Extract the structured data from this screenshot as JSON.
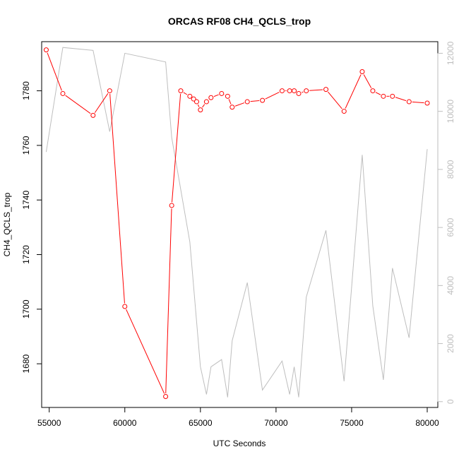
{
  "chart_data": {
    "type": "line",
    "title": "ORCAS RF08 CH4_QCLS_trop",
    "xlabel": "UTC Seconds",
    "ylabel": "CH4_QCLS_trop",
    "xlim": [
      54500,
      80700
    ],
    "ylim_left": [
      1664,
      1798
    ],
    "ylim_right": [
      -200,
      12400
    ],
    "x_ticks": [
      55000,
      60000,
      65000,
      70000,
      75000,
      80000
    ],
    "y_ticks_left": [
      1680,
      1700,
      1720,
      1740,
      1760,
      1780
    ],
    "y_ticks_right": [
      0,
      2000,
      4000,
      6000,
      8000,
      10000,
      12000
    ],
    "colors": {
      "primary": "#ff0000",
      "secondary": "#bebebe",
      "axis": "#000000"
    },
    "series": [
      {
        "axis": "left",
        "style": "line-points",
        "color": "#ff0000",
        "x": [
          54800,
          55900,
          57900,
          59000,
          60000,
          62700,
          63100,
          63700,
          64300,
          64550,
          64750,
          65000,
          65400,
          65700,
          66400,
          66800,
          67100,
          68100,
          69100,
          70400,
          70900,
          71200,
          71500,
          72000,
          73300,
          74500,
          75700,
          76400,
          77100,
          77700,
          78800,
          80000
        ],
        "y": [
          1795,
          1779,
          1771,
          1780,
          1701,
          1668,
          1738,
          1780,
          1778,
          1777,
          1776,
          1773,
          1776,
          1777.5,
          1779,
          1778,
          1774,
          1776,
          1776.5,
          1780,
          1780,
          1780,
          1779,
          1780,
          1780.5,
          1772.5,
          1787,
          1780,
          1778,
          1778,
          1776,
          1775.5
        ]
      },
      {
        "axis": "right",
        "style": "line",
        "color": "#bebebe",
        "x": [
          54800,
          55900,
          57900,
          59000,
          60000,
          62700,
          63100,
          64300,
          65000,
          65400,
          65700,
          66400,
          66800,
          67100,
          68100,
          69100,
          70400,
          70900,
          71200,
          71500,
          72000,
          73300,
          74500,
          75700,
          76400,
          77100,
          77700,
          78800,
          80000
        ],
        "y": [
          8600,
          12200,
          12100,
          9300,
          12000,
          11700,
          9100,
          5500,
          1200,
          250,
          1200,
          1450,
          150,
          2100,
          4100,
          400,
          1400,
          250,
          1200,
          150,
          3600,
          5900,
          700,
          8500,
          3300,
          750,
          4600,
          2200,
          8700
        ]
      }
    ]
  }
}
